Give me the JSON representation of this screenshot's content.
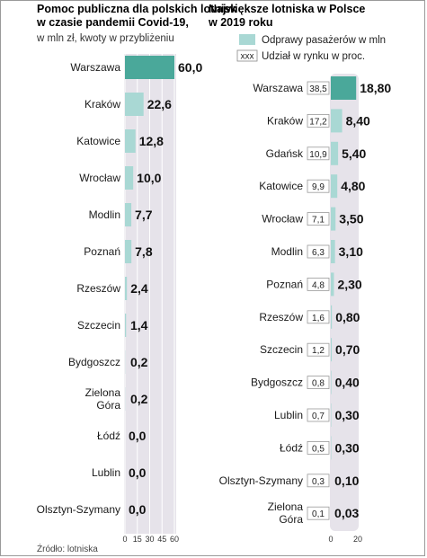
{
  "source": "Źródło: lotniska",
  "colors": {
    "bar_main": "#4aa89a",
    "bar_light": "#a9d8d4",
    "band": "#e6e3ea"
  },
  "chart_data": [
    {
      "type": "bar",
      "orientation": "horizontal",
      "title": [
        "Pomoc publiczna dla polskich lotnisk",
        "w czasie pandemii Covid-19,"
      ],
      "subtitle": "w mln zł, kwoty w przybliżeniu",
      "categories": [
        [
          "Warszawa"
        ],
        [
          "Kraków"
        ],
        [
          "Katowice"
        ],
        [
          "Wrocław"
        ],
        [
          "Modlin"
        ],
        [
          "Poznań"
        ],
        [
          "Rzeszów"
        ],
        [
          "Szczecin"
        ],
        [
          "Bydgoszcz"
        ],
        [
          "Zielona",
          "Góra"
        ],
        [
          "Łódź"
        ],
        [
          "Lublin"
        ],
        [
          "Olsztyn-Szymany"
        ]
      ],
      "values": [
        60.0,
        22.6,
        12.8,
        10.0,
        7.7,
        7.8,
        2.4,
        1.4,
        0.2,
        0.2,
        0.0,
        0.0,
        0.0
      ],
      "value_labels": [
        "60,0",
        "22,6",
        "12,8",
        "10,0",
        "7,7",
        "7,8",
        "2,4",
        "1,4",
        "0,2",
        "0,2",
        "0,0",
        "0,0",
        "0,0"
      ],
      "xlim": [
        0,
        60
      ],
      "xticks": [
        0,
        15,
        30,
        45,
        60
      ],
      "grid": true,
      "highlight_index": 0
    },
    {
      "type": "bar",
      "orientation": "horizontal",
      "title": [
        "Największe lotniska w Polsce",
        "w 2019 roku"
      ],
      "legend": [
        {
          "marker": "swatch",
          "label": "Odprawy pasażerów w mln"
        },
        {
          "marker": "box",
          "box_text": "xxx",
          "label": "Udział w rynku w proc."
        }
      ],
      "categories": [
        [
          "Warszawa"
        ],
        [
          "Kraków"
        ],
        [
          "Gdańsk"
        ],
        [
          "Katowice"
        ],
        [
          "Wrocław"
        ],
        [
          "Modlin"
        ],
        [
          "Poznań"
        ],
        [
          "Rzeszów"
        ],
        [
          "Szczecin"
        ],
        [
          "Bydgoszcz"
        ],
        [
          "Lublin"
        ],
        [
          "Łódź"
        ],
        [
          "Olsztyn-Szymany"
        ],
        [
          "Zielona",
          "Góra"
        ]
      ],
      "values": [
        18.8,
        8.4,
        5.4,
        4.8,
        3.5,
        3.1,
        2.3,
        0.8,
        0.7,
        0.4,
        0.3,
        0.3,
        0.1,
        0.03
      ],
      "value_labels": [
        "18,80",
        "8,40",
        "5,40",
        "4,80",
        "3,50",
        "3,10",
        "2,30",
        "0,80",
        "0,70",
        "0,40",
        "0,30",
        "0,30",
        "0,10",
        "0,03"
      ],
      "share": [
        38.5,
        17.2,
        10.9,
        9.9,
        7.1,
        6.3,
        4.8,
        1.6,
        1.2,
        0.8,
        0.7,
        0.5,
        0.3,
        0.1
      ],
      "share_labels": [
        "38,5",
        "17,2",
        "10,9",
        "9,9",
        "7,1",
        "6,3",
        "4,8",
        "1,6",
        "1,2",
        "0,8",
        "0,7",
        "0,5",
        "0,3",
        "0,1"
      ],
      "xlim": [
        0,
        20
      ],
      "xticks": [
        0,
        20
      ],
      "grid": false,
      "highlight_index": 0
    }
  ]
}
